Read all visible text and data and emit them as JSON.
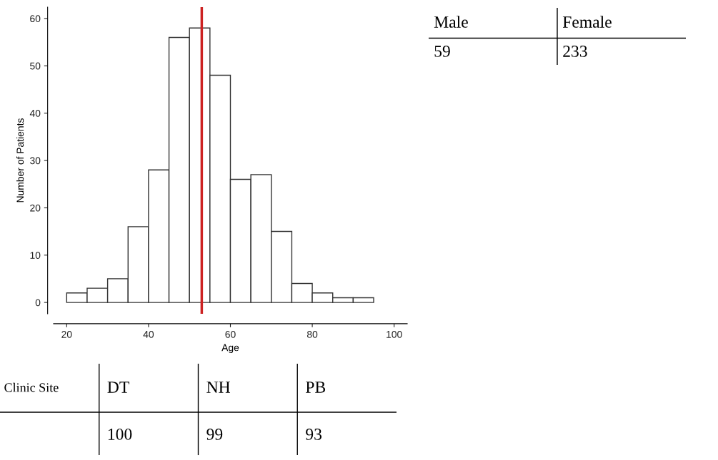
{
  "chart_data": [
    {
      "type": "histogram",
      "xlabel": "Age",
      "ylabel": "Number of Patients",
      "bins": [
        20,
        25,
        30,
        35,
        40,
        45,
        50,
        55,
        60,
        65,
        70,
        75,
        80,
        85,
        90,
        95
      ],
      "values": [
        2,
        3,
        5,
        16,
        28,
        56,
        58,
        48,
        26,
        27,
        15,
        4,
        2,
        1,
        1
      ],
      "color": "#ffffff",
      "xlim": [
        16.8,
        103.2
      ],
      "ylim": [
        -2.4,
        62.4
      ],
      "xticks": [
        20,
        40,
        60,
        80,
        100
      ],
      "yticks": [
        0,
        10,
        20,
        30,
        40,
        50,
        60
      ],
      "ref_lines": [
        {
          "axis": "x",
          "value": 53,
          "color": "#cc2222"
        }
      ],
      "grid": false
    },
    {
      "type": "other",
      "categories": [
        "Male",
        "Female"
      ],
      "values": [
        59,
        233
      ],
      "data_labels": true
    },
    {
      "type": "other",
      "title": "Clinic Site",
      "categories": [
        "DT",
        "NH",
        "PB"
      ],
      "values": [
        100,
        99,
        93
      ],
      "data_labels": true
    }
  ]
}
